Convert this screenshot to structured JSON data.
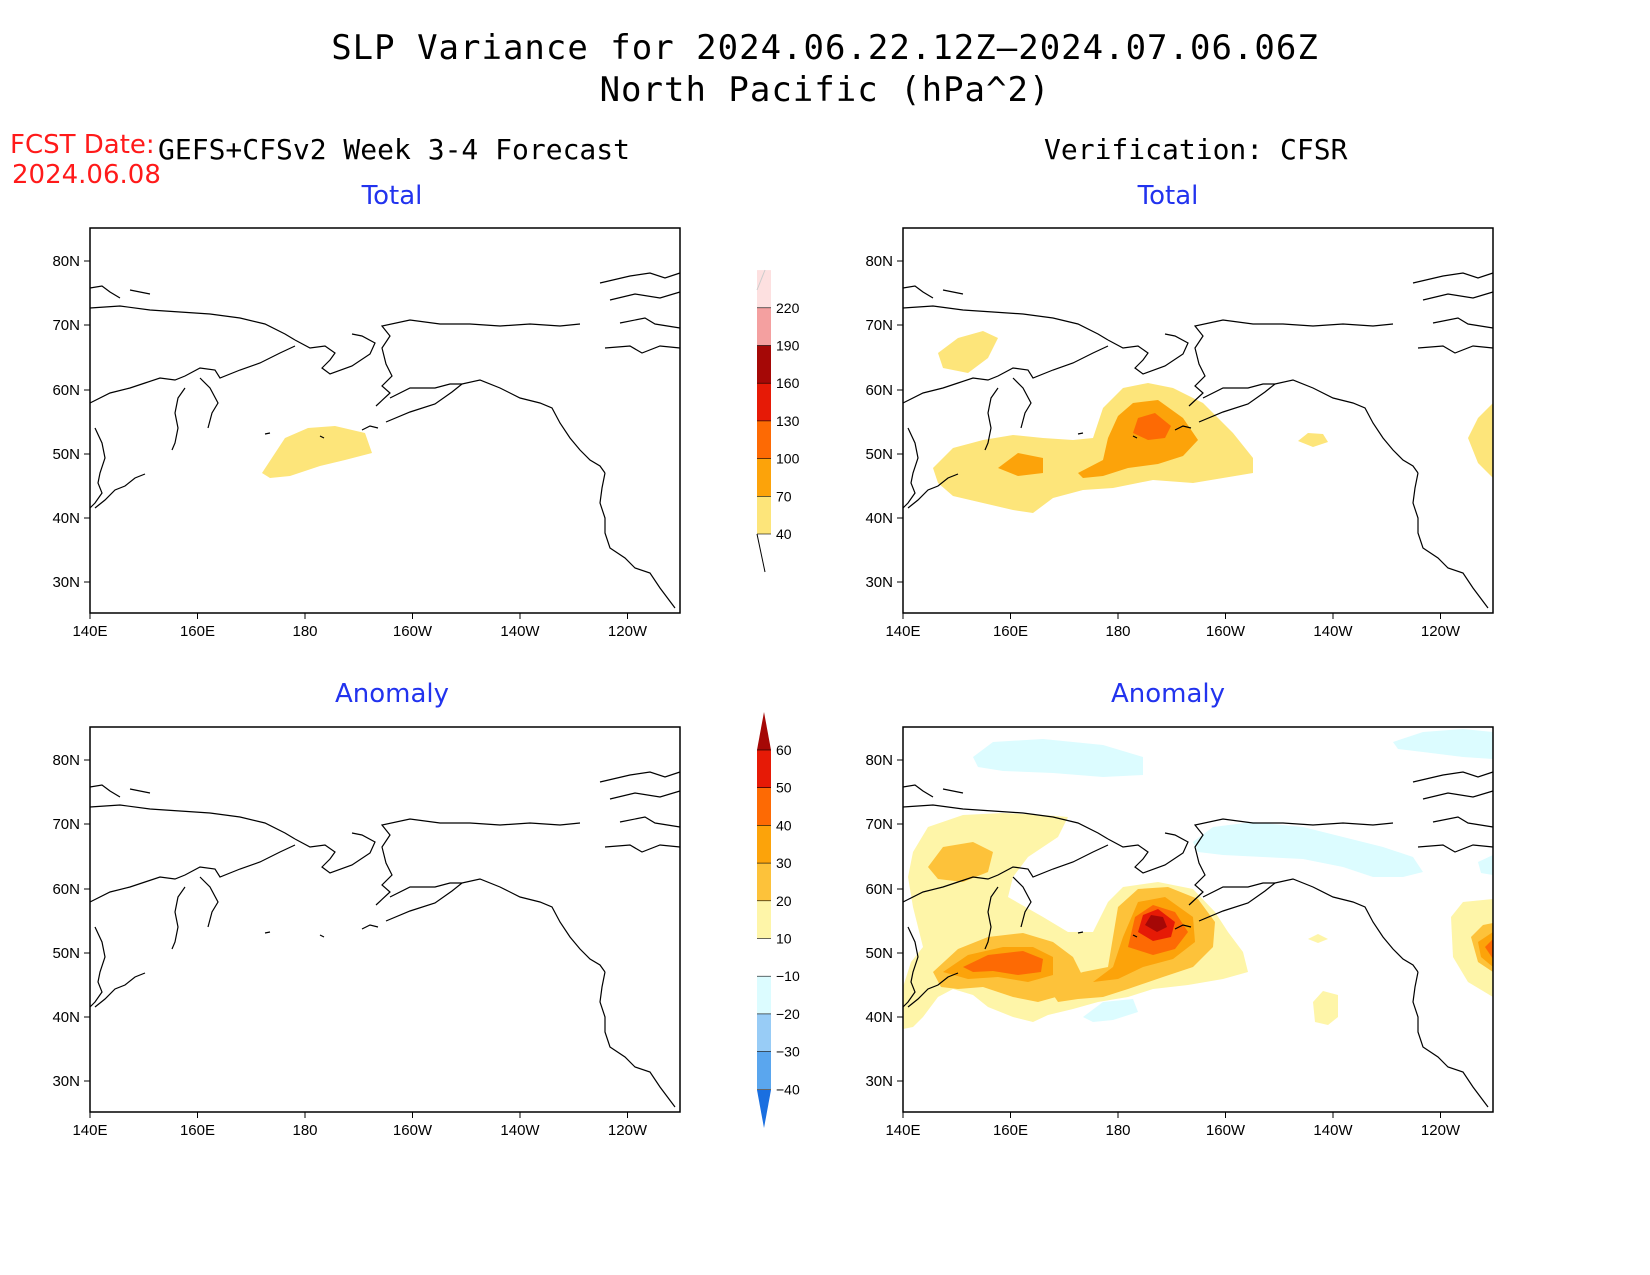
{
  "title": {
    "line1": "SLP Variance for 2024.06.22.12Z–2024.07.06.06Z",
    "line2": "North Pacific (hPa^2)"
  },
  "fcst": {
    "label": "FCST Date:",
    "date": "2024.06.08"
  },
  "headers": {
    "left": "GEFS+CFSv2 Week 3-4 Forecast",
    "right": "Verification: CFSR"
  },
  "panels": {
    "forecast_total": "Total",
    "verification_total": "Total",
    "forecast_anomaly": "Anomaly",
    "verification_anomaly": "Anomaly"
  },
  "axes": {
    "lon_labels": [
      "140E",
      "160E",
      "180",
      "160W",
      "140W",
      "120W"
    ],
    "lat_labels": [
      "80N",
      "70N",
      "60N",
      "50N",
      "40N",
      "30N"
    ]
  },
  "colorbars": {
    "total": {
      "levels": [
        "40",
        "70",
        "100",
        "130",
        "160",
        "190",
        "220"
      ],
      "colors": [
        "#fde57a",
        "#fca30a",
        "#fd6a04",
        "#e61a06",
        "#a50806",
        "#f4a0a0",
        "#fde0e0"
      ]
    },
    "anomaly": {
      "levels": [
        "60",
        "50",
        "40",
        "30",
        "20",
        "10",
        "−10",
        "−20",
        "−30",
        "−40"
      ],
      "colors": [
        "#a50806",
        "#e61a06",
        "#fd6a04",
        "#fca30a",
        "#fdc23a",
        "#fef5a8",
        "#ffffff",
        "#dcfcff",
        "#98ccf6",
        "#5aa6ee",
        "#1a6fe0"
      ]
    }
  },
  "colors": {
    "title_red": "#ff1a1a",
    "panel_title_blue": "#2233ee"
  }
}
